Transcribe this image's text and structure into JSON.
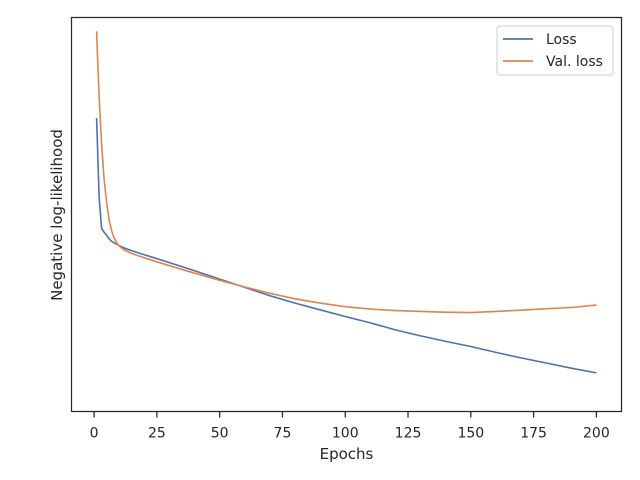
{
  "chart_data": {
    "type": "line",
    "xlabel": "Epochs",
    "ylabel": "Negative log-likelihood",
    "xlim": [
      -9,
      210
    ],
    "ylim": [
      0.0,
      1.0
    ],
    "xticks": [
      0,
      25,
      50,
      75,
      100,
      125,
      150,
      175,
      200
    ],
    "legend_position": "top-right",
    "grid": false,
    "series": [
      {
        "name": "Loss",
        "color": "#4c72b0",
        "x": [
          1,
          2,
          3,
          4,
          5,
          6,
          7,
          8,
          10,
          12,
          15,
          20,
          25,
          30,
          40,
          50,
          60,
          70,
          80,
          90,
          100,
          110,
          120,
          130,
          140,
          150,
          160,
          170,
          180,
          190,
          200
        ],
        "y": [
          0.745,
          0.545,
          0.465,
          0.455,
          0.447,
          0.438,
          0.432,
          0.428,
          0.421,
          0.415,
          0.408,
          0.398,
          0.388,
          0.378,
          0.357,
          0.336,
          0.315,
          0.294,
          0.275,
          0.258,
          0.241,
          0.225,
          0.207,
          0.192,
          0.178,
          0.165,
          0.15,
          0.136,
          0.123,
          0.11,
          0.098
        ]
      },
      {
        "name": "Val. loss",
        "color": "#dd8452",
        "x": [
          1,
          2,
          3,
          4,
          5,
          6,
          7,
          8,
          9,
          10,
          12,
          15,
          20,
          25,
          30,
          40,
          50,
          60,
          70,
          80,
          90,
          100,
          110,
          120,
          130,
          140,
          150,
          160,
          170,
          180,
          190,
          200
        ],
        "y": [
          0.965,
          0.8,
          0.68,
          0.59,
          0.53,
          0.485,
          0.458,
          0.44,
          0.428,
          0.42,
          0.41,
          0.401,
          0.39,
          0.38,
          0.37,
          0.351,
          0.333,
          0.316,
          0.3,
          0.286,
          0.275,
          0.266,
          0.26,
          0.256,
          0.254,
          0.252,
          0.251,
          0.254,
          0.257,
          0.261,
          0.264,
          0.27
        ]
      }
    ]
  }
}
